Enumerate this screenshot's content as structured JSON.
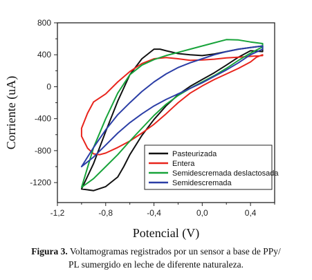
{
  "chart_data": {
    "type": "line",
    "title": "",
    "xlabel": "Potencial (V)",
    "ylabel": "Corriente (uA)",
    "xlim": [
      -1.2,
      0.6
    ],
    "ylim": [
      -1450,
      800
    ],
    "xticks": [
      -1.2,
      -0.8,
      -0.4,
      0.0,
      0.4
    ],
    "xtick_labels": [
      "-1,2",
      "-0,8",
      "-0,4",
      "0,0",
      "0,4"
    ],
    "yticks": [
      800,
      400,
      0,
      -400,
      -800,
      -1200
    ],
    "ytick_labels": [
      "800",
      "400",
      "0",
      "-400",
      "-800",
      "-1200"
    ],
    "grid": false,
    "legend_position": "lower-right",
    "series": [
      {
        "name": "Pasteurizada",
        "color": "#111111",
        "x": [
          -1.0,
          -0.9,
          -0.8,
          -0.7,
          -0.6,
          -0.5,
          -0.4,
          -0.35,
          -0.3,
          -0.2,
          -0.1,
          0.0,
          0.1,
          0.2,
          0.3,
          0.4,
          0.5,
          0.5,
          0.4,
          0.3,
          0.2,
          0.1,
          0.0,
          -0.1,
          -0.2,
          -0.3,
          -0.4,
          -0.5,
          -0.6,
          -0.65,
          -0.7,
          -0.8,
          -0.9,
          -0.95,
          -1.0
        ],
        "y": [
          -1280,
          -960,
          -560,
          -180,
          150,
          350,
          470,
          470,
          450,
          415,
          400,
          390,
          410,
          440,
          470,
          490,
          510,
          440,
          450,
          370,
          270,
          175,
          90,
          5,
          -100,
          -240,
          -410,
          -610,
          -850,
          -1000,
          -1130,
          -1250,
          -1300,
          -1290,
          -1280
        ]
      },
      {
        "name": "Entera",
        "color": "#e8241c",
        "x": [
          -1.0,
          -1.0,
          -0.95,
          -0.9,
          -0.8,
          -0.7,
          -0.6,
          -0.5,
          -0.4,
          -0.3,
          -0.2,
          -0.1,
          0.0,
          0.1,
          0.2,
          0.3,
          0.4,
          0.5,
          0.5,
          0.45,
          0.4,
          0.3,
          0.2,
          0.1,
          0.0,
          -0.1,
          -0.2,
          -0.3,
          -0.4,
          -0.5,
          -0.6,
          -0.7,
          -0.8,
          -0.85,
          -0.9,
          -0.95,
          -1.0
        ],
        "y": [
          -620,
          -520,
          -330,
          -190,
          -90,
          60,
          190,
          290,
          350,
          365,
          350,
          330,
          335,
          345,
          360,
          370,
          380,
          390,
          400,
          370,
          310,
          230,
          160,
          90,
          10,
          -80,
          -200,
          -340,
          -470,
          -580,
          -680,
          -760,
          -830,
          -850,
          -840,
          -770,
          -620
        ]
      },
      {
        "name": "Semidescremada deslactosada",
        "color": "#17a33a",
        "x": [
          -1.0,
          -0.9,
          -0.8,
          -0.7,
          -0.6,
          -0.5,
          -0.4,
          -0.3,
          -0.2,
          -0.1,
          0.0,
          0.1,
          0.2,
          0.3,
          0.4,
          0.5,
          0.5,
          0.4,
          0.3,
          0.2,
          0.1,
          0.0,
          -0.1,
          -0.2,
          -0.3,
          -0.4,
          -0.5,
          -0.6,
          -0.7,
          -0.8,
          -0.9,
          -1.0
        ],
        "y": [
          -1260,
          -760,
          -400,
          -80,
          150,
          270,
          340,
          390,
          430,
          470,
          510,
          550,
          590,
          585,
          560,
          540,
          500,
          420,
          330,
          230,
          140,
          60,
          -20,
          -110,
          -220,
          -360,
          -520,
          -680,
          -850,
          -1000,
          -1150,
          -1260
        ]
      },
      {
        "name": "Semidescremada",
        "color": "#2b3ea6",
        "x": [
          -1.0,
          -0.9,
          -0.8,
          -0.7,
          -0.6,
          -0.5,
          -0.4,
          -0.3,
          -0.2,
          -0.1,
          0.0,
          0.1,
          0.2,
          0.3,
          0.4,
          0.5,
          0.5,
          0.4,
          0.3,
          0.2,
          0.1,
          0.0,
          -0.1,
          -0.2,
          -0.3,
          -0.4,
          -0.5,
          -0.6,
          -0.7,
          -0.8,
          -0.9,
          -1.0
        ],
        "y": [
          -1000,
          -760,
          -540,
          -350,
          -200,
          -60,
          60,
          160,
          240,
          300,
          350,
          400,
          440,
          470,
          490,
          510,
          470,
          400,
          300,
          210,
          130,
          50,
          -20,
          -90,
          -160,
          -240,
          -340,
          -450,
          -580,
          -730,
          -880,
          -1000
        ]
      }
    ]
  },
  "caption": {
    "label": "Figura 3.",
    "line1": " Voltamogramas registrados por un sensor a base de PPy/",
    "line2": "PL sumergido en leche de diferente naturaleza."
  }
}
